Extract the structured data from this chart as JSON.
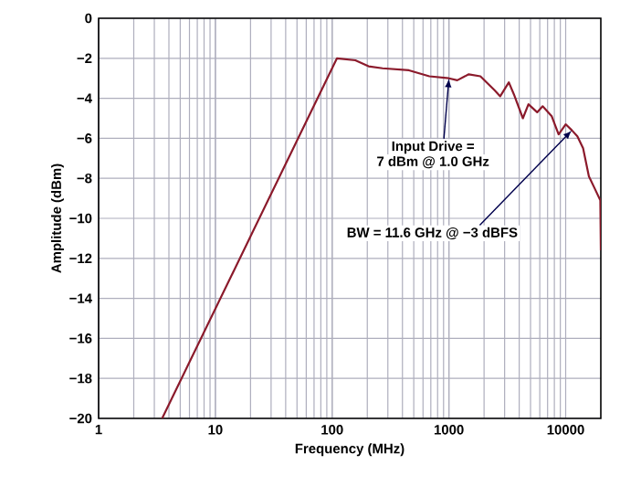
{
  "chart_data": {
    "type": "line",
    "xlabel": "Frequency (MHz)",
    "ylabel": "Amplitude (dBm)",
    "log": "x",
    "grid": true,
    "marker": "none",
    "line_style": "solid",
    "xlim": [
      1,
      20000
    ],
    "ylim": [
      -20,
      0
    ],
    "xticks": [
      1,
      10,
      100,
      1000,
      10000
    ],
    "yticks": [
      0,
      {
        "value": -2,
        "label": "−2"
      },
      {
        "value": -4,
        "label": "−4"
      },
      {
        "value": -6,
        "label": "−6"
      },
      {
        "value": -8,
        "label": "−8"
      },
      {
        "value": -10,
        "label": "−10"
      },
      {
        "value": -12,
        "label": "−12"
      },
      {
        "value": -14,
        "label": "−14"
      },
      {
        "value": -16,
        "label": "−16"
      },
      {
        "value": -18,
        "label": "−18"
      },
      {
        "value": -20,
        "label": "−20"
      }
    ],
    "series": [
      {
        "color": "#8b1a2b",
        "x": [
          3.5,
          20,
          110,
          158,
          205,
          270,
          455,
          680,
          1000,
          1180,
          1480,
          1860,
          2460,
          2750,
          3260,
          3600,
          4300,
          4800,
          5700,
          6350,
          7600,
          8700,
          10000,
          11300,
          12600,
          14100,
          15800,
          17700,
          19800,
          20000
        ],
        "values": [
          -20,
          -10.9,
          -2.0,
          -2.1,
          -2.4,
          -2.5,
          -2.6,
          -2.9,
          -3.0,
          -3.1,
          -2.8,
          -2.9,
          -3.6,
          -3.9,
          -3.2,
          -3.8,
          -5.0,
          -4.3,
          -4.7,
          -4.4,
          -4.9,
          -5.8,
          -5.3,
          -5.6,
          -5.9,
          -6.5,
          -7.9,
          -8.5,
          -9.1,
          -11.6
        ]
      }
    ],
    "annotations": [
      {
        "text": "Input Drive =",
        "x": 1000,
        "y": -3.0
      },
      "7 dBm @ 1.0 GHz",
      {
        "text": "BW = 11.6 GHz @ −3 dBFS",
        "x": 11300,
        "y": -5.6
      }
    ]
  }
}
